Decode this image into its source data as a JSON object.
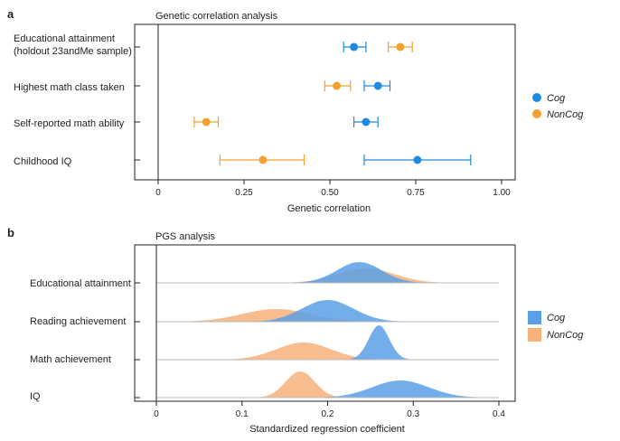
{
  "panels": {
    "a": {
      "letter": "a",
      "title": "Genetic correlation analysis",
      "categories": [
        "Educational attainment\n(holdout 23andMe sample)",
        "Highest math class taken",
        "Self-reported math ability",
        "Childhood IQ"
      ],
      "series": [
        {
          "name": "Cog",
          "color": "#1f8be0",
          "values": [
            0.57,
            0.64,
            0.605,
            0.755
          ],
          "ci": [
            [
              0.54,
              0.605
            ],
            [
              0.6,
              0.675
            ],
            [
              0.57,
              0.64
            ],
            [
              0.6,
              0.91
            ]
          ]
        },
        {
          "name": "NonCog",
          "color": "#f5a030",
          "values": [
            0.705,
            0.52,
            0.14,
            0.305
          ],
          "ci": [
            [
              0.67,
              0.74
            ],
            [
              0.485,
              0.56
            ],
            [
              0.105,
              0.175
            ],
            [
              0.18,
              0.425
            ]
          ]
        }
      ],
      "x_ticks": [
        "0",
        "0.25",
        "0.50",
        "0.75",
        "1.00"
      ],
      "xlabel": "Genetic correlation"
    },
    "b": {
      "letter": "b",
      "title": "PGS analysis",
      "categories": [
        "Educational attainment",
        "Reading achievement",
        "Math achievement",
        "IQ"
      ],
      "x_ticks": [
        "0",
        "0.1",
        "0.2",
        "0.3",
        "0.4"
      ],
      "xlabel": "Standardized regression coefficient"
    }
  },
  "chart_data": [
    {
      "type": "scatter",
      "title": "Genetic correlation analysis",
      "xlabel": "Genetic correlation",
      "ylabel": "",
      "xlim": [
        -0.05,
        1.03
      ],
      "categories": [
        "Educational attainment (holdout 23andMe sample)",
        "Highest math class taken",
        "Self-reported math ability",
        "Childhood IQ"
      ],
      "series": [
        {
          "name": "Cog",
          "values": [
            0.57,
            0.64,
            0.605,
            0.755
          ],
          "ci": [
            [
              0.54,
              0.605
            ],
            [
              0.6,
              0.675
            ],
            [
              0.57,
              0.64
            ],
            [
              0.6,
              0.91
            ]
          ]
        },
        {
          "name": "NonCog",
          "values": [
            0.705,
            0.52,
            0.14,
            0.305
          ],
          "ci": [
            [
              0.67,
              0.74
            ],
            [
              0.485,
              0.56
            ],
            [
              0.105,
              0.175
            ],
            [
              0.18,
              0.425
            ]
          ]
        }
      ],
      "legend": "right",
      "grid": false
    },
    {
      "type": "area",
      "title": "PGS analysis",
      "xlabel": "Standardized regression coefficient",
      "ylabel": "",
      "xlim": [
        -0.01,
        0.42
      ],
      "categories": [
        "Educational attainment",
        "Reading achievement",
        "Math achievement",
        "IQ"
      ],
      "series": [
        {
          "name": "Cog",
          "density_peaks": [
            0.237,
            0.2,
            0.26,
            0.285
          ]
        },
        {
          "name": "NonCog",
          "density_peaks": [
            0.24,
            0.14,
            0.17,
            0.168
          ]
        }
      ],
      "legend": "right",
      "grid": false
    }
  ],
  "legend": {
    "a": [
      {
        "label": "Cog",
        "color": "#1f8be0"
      },
      {
        "label": "NonCog",
        "color": "#f5a030"
      }
    ],
    "b": [
      {
        "label": "Cog",
        "color": "#5aa0e8"
      },
      {
        "label": "NonCog",
        "color": "#f7b27a"
      }
    ]
  }
}
